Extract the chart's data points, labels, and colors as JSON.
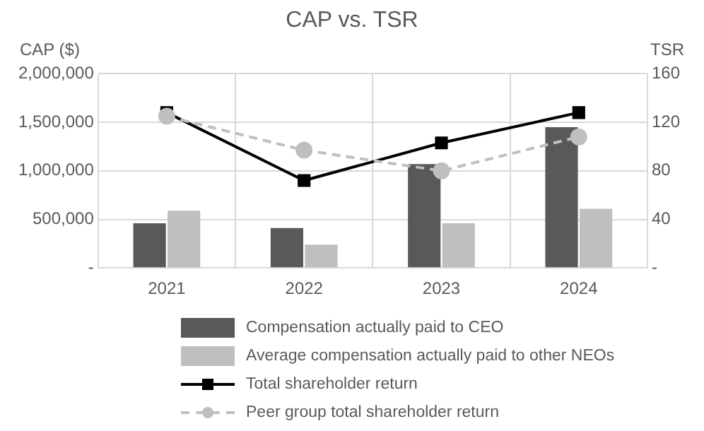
{
  "chart_data": {
    "type": "bar",
    "title": "CAP vs. TSR",
    "ylabel": "CAP ($)",
    "y2label": "TSR",
    "categories": [
      "2021",
      "2022",
      "2023",
      "2024"
    ],
    "series": [
      {
        "name": "Compensation actually paid to CEO",
        "color": "#595959",
        "values": [
          460000,
          410000,
          1070000,
          1450000
        ]
      },
      {
        "name": "Average compensation actually paid to other NEOs",
        "color": "#bfbfbf",
        "values": [
          590000,
          240000,
          460000,
          610000
        ]
      },
      {
        "name": "Total shareholder return",
        "type": "line",
        "axis": "y2",
        "color": "#000000",
        "marker": "square",
        "line_style": "solid",
        "values": [
          128,
          72,
          103,
          128
        ]
      },
      {
        "name": "Peer group total shareholder return",
        "type": "line",
        "axis": "y2",
        "color": "#bfbfbf",
        "marker": "circle",
        "line_style": "dashed",
        "values": [
          125,
          97,
          80,
          108
        ]
      }
    ],
    "ylim": [
      0,
      2000000
    ],
    "yticks": [
      {
        "value": 0,
        "label": "-"
      },
      {
        "value": 500000,
        "label": "500,000"
      },
      {
        "value": 1000000,
        "label": "1,000,000"
      },
      {
        "value": 1500000,
        "label": "1,500,000"
      },
      {
        "value": 2000000,
        "label": "2,000,000"
      }
    ],
    "y2lim": [
      0,
      160
    ],
    "y2ticks": [
      {
        "value": 0,
        "label": "-"
      },
      40,
      80,
      120,
      160
    ],
    "grid": true,
    "legend": "bottom"
  }
}
